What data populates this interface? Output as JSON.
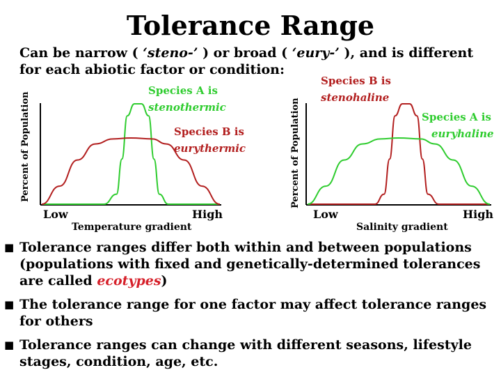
{
  "title": "Tolerance Range",
  "intro": {
    "p1": "Can be narrow (",
    "steno": "‘steno-’",
    "p2": ") or broad (",
    "eury": "‘eury-’",
    "p3": "), and is different for each abiotic factor or condition:"
  },
  "colors": {
    "speciesA": "#2ecc2e",
    "speciesB": "#b21e1e",
    "accent": "#d6202a"
  },
  "chart_data": [
    {
      "type": "line",
      "ylabel": "Percent of Population",
      "xlabel": "Temperature gradient",
      "x_low": "Low",
      "x_high": "High",
      "series": [
        {
          "name_line1": "Species A is",
          "name_line2": "stenothermic",
          "color": "#2ecc2e",
          "x": [
            0,
            0.15,
            0.35,
            0.42,
            0.45,
            0.48,
            0.52,
            0.56,
            0.6,
            0.63,
            0.66,
            0.71,
            0.9,
            1
          ],
          "values": [
            0,
            0,
            0,
            0.1,
            0.45,
            0.88,
            1,
            1,
            0.88,
            0.45,
            0.1,
            0,
            0,
            0
          ]
        },
        {
          "name_line1": "Species B is",
          "name_line2": "eurythermic",
          "color": "#b21e1e",
          "x": [
            0,
            0.1,
            0.2,
            0.3,
            0.4,
            0.5,
            0.62,
            0.7,
            0.8,
            0.9,
            1
          ],
          "values": [
            0,
            0.18,
            0.44,
            0.6,
            0.65,
            0.66,
            0.65,
            0.6,
            0.44,
            0.18,
            0
          ]
        }
      ]
    },
    {
      "type": "line",
      "ylabel": "Percent of Population",
      "xlabel": "Salinity gradient",
      "x_low": "Low",
      "x_high": "High",
      "series": [
        {
          "name_line1": "Species B is",
          "name_line2": "stenohaline",
          "color": "#b21e1e",
          "x": [
            0,
            0.2,
            0.37,
            0.42,
            0.45,
            0.48,
            0.52,
            0.56,
            0.6,
            0.63,
            0.66,
            0.72,
            0.9,
            1
          ],
          "values": [
            0,
            0,
            0,
            0.1,
            0.45,
            0.88,
            1,
            1,
            0.88,
            0.45,
            0.1,
            0,
            0,
            0
          ]
        },
        {
          "name_line1": "Species A is",
          "name_line2": "euryhaline",
          "color": "#2ecc2e",
          "x": [
            0,
            0.1,
            0.2,
            0.3,
            0.4,
            0.5,
            0.62,
            0.7,
            0.8,
            0.9,
            1
          ],
          "values": [
            0,
            0.18,
            0.44,
            0.6,
            0.65,
            0.66,
            0.65,
            0.6,
            0.44,
            0.18,
            0
          ]
        }
      ]
    }
  ],
  "bullets": [
    {
      "text": "Tolerance ranges differ both within and between populations (populations with fixed and genetically-determined tolerances are called ",
      "highlight": "ecotypes",
      "after": ")"
    },
    {
      "text": "The tolerance range for one factor may affect tolerance ranges for others"
    },
    {
      "text": "Tolerance ranges can change with different seasons, lifestyle stages, condition, age, etc."
    }
  ],
  "bullet_mark": "■"
}
